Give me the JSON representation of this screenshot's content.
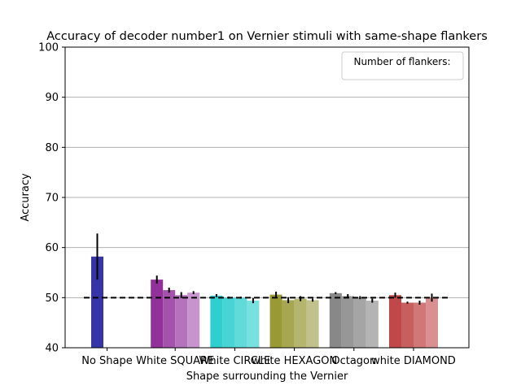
{
  "chart_data": {
    "type": "bar",
    "title": "Accuracy of decoder number1 on Vernier stimuli with same-shape flankers",
    "xlabel": "Shape surrounding the Vernier",
    "ylabel": "Accuracy",
    "ylim": [
      40,
      100
    ],
    "yticks": [
      40,
      50,
      60,
      70,
      80,
      90,
      100
    ],
    "grid": "horizontal",
    "legend": {
      "title": "Number of flankers:",
      "placement": "top-right"
    },
    "chance_level": 50,
    "groups": [
      {
        "label": "No Shape",
        "colors": [
          "#3535a8"
        ],
        "values": [
          58.2
        ],
        "errors": [
          4.6
        ]
      },
      {
        "label": "White SQUARE",
        "colors": [
          "#93319b",
          "#a452ac",
          "#b673bd",
          "#c794cd"
        ],
        "values": [
          53.6,
          51.5,
          50.5,
          51.0
        ],
        "errors": [
          0.8,
          0.5,
          0.6,
          0.3
        ]
      },
      {
        "label": "White CIRCLE",
        "colors": [
          "#30cfcf",
          "#48d4d4",
          "#61dada",
          "#79e0e0"
        ],
        "values": [
          50.4,
          50.0,
          50.0,
          49.4
        ],
        "errors": [
          0.3,
          0.2,
          0.2,
          0.5
        ]
      },
      {
        "label": "white HEXAGON",
        "colors": [
          "#999935",
          "#a7a752",
          "#b5b570",
          "#c1c18b"
        ],
        "values": [
          50.6,
          49.5,
          49.8,
          49.5
        ],
        "errors": [
          0.6,
          0.6,
          0.5,
          0.3
        ]
      },
      {
        "label": "Octagon",
        "colors": [
          "#888888",
          "#979797",
          "#a5a5a5",
          "#b4b4b4"
        ],
        "values": [
          50.9,
          50.3,
          50.0,
          49.4
        ],
        "errors": [
          0.2,
          0.4,
          0.3,
          0.4
        ]
      },
      {
        "label": "white DIAMOND",
        "colors": [
          "#c04848",
          "#c85f5f",
          "#d17777",
          "#da9090"
        ],
        "values": [
          50.5,
          49.0,
          49.0,
          50.0
        ],
        "errors": [
          0.5,
          0.2,
          0.4,
          0.8
        ]
      }
    ]
  }
}
